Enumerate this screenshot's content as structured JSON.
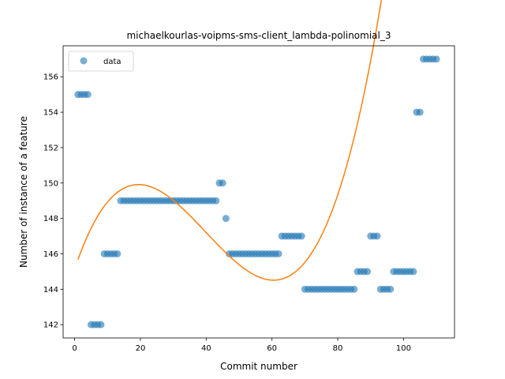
{
  "chart_data": {
    "type": "scatter",
    "title": "michaelkourlas-voipms-sms-client_lambda-polinomial_3",
    "xlabel": "Commit number",
    "ylabel": "Number of instance of a feature",
    "xlim": [
      -3.5,
      115.5
    ],
    "ylim": [
      141.25,
      157.75
    ],
    "xticks": [
      0,
      20,
      40,
      60,
      80,
      100
    ],
    "yticks": [
      142,
      144,
      146,
      148,
      150,
      152,
      154,
      156
    ],
    "legend": {
      "placement": "top-left",
      "entries": [
        "data"
      ]
    },
    "grid": false,
    "colors": {
      "points": "#1f77b4",
      "fit": "#ff7f0e"
    },
    "series": [
      {
        "name": "data",
        "kind": "scatter",
        "x": [
          1,
          2,
          3,
          4,
          5,
          6,
          7,
          8,
          9,
          10,
          11,
          12,
          13,
          14,
          15,
          16,
          17,
          18,
          19,
          20,
          21,
          22,
          23,
          24,
          25,
          26,
          27,
          28,
          29,
          30,
          31,
          32,
          33,
          34,
          35,
          36,
          37,
          38,
          39,
          40,
          41,
          42,
          43,
          44,
          45,
          46,
          47,
          48,
          49,
          50,
          51,
          52,
          53,
          54,
          55,
          56,
          57,
          58,
          59,
          60,
          61,
          62,
          63,
          64,
          65,
          66,
          67,
          68,
          69,
          70,
          71,
          72,
          73,
          74,
          75,
          76,
          77,
          78,
          79,
          80,
          81,
          82,
          83,
          84,
          85,
          86,
          87,
          88,
          89,
          90,
          91,
          92,
          93,
          94,
          95,
          96,
          97,
          98,
          99,
          100,
          101,
          102,
          103,
          104,
          105,
          106,
          107,
          108,
          109,
          110
        ],
        "y": [
          155,
          155,
          155,
          155,
          142,
          142,
          142,
          142,
          146,
          146,
          146,
          146,
          146,
          149,
          149,
          149,
          149,
          149,
          149,
          149,
          149,
          149,
          149,
          149,
          149,
          149,
          149,
          149,
          149,
          149,
          149,
          149,
          149,
          149,
          149,
          149,
          149,
          149,
          149,
          149,
          149,
          149,
          149,
          150,
          150,
          148,
          146,
          146,
          146,
          146,
          146,
          146,
          146,
          146,
          146,
          146,
          146,
          146,
          146,
          146,
          146,
          146,
          147,
          147,
          147,
          147,
          147,
          147,
          147,
          144,
          144,
          144,
          144,
          144,
          144,
          144,
          144,
          144,
          144,
          144,
          144,
          144,
          144,
          144,
          144,
          145,
          145,
          145,
          145,
          147,
          147,
          147,
          144,
          144,
          144,
          144,
          145,
          145,
          145,
          145,
          145,
          145,
          145,
          154,
          154,
          157,
          157,
          157,
          157,
          157
        ]
      },
      {
        "name": "",
        "kind": "line",
        "poly3_coefficients": [
          145.14,
          0.55,
          -0.0187,
          0.000156
        ],
        "x_range": [
          1,
          110
        ]
      }
    ]
  }
}
